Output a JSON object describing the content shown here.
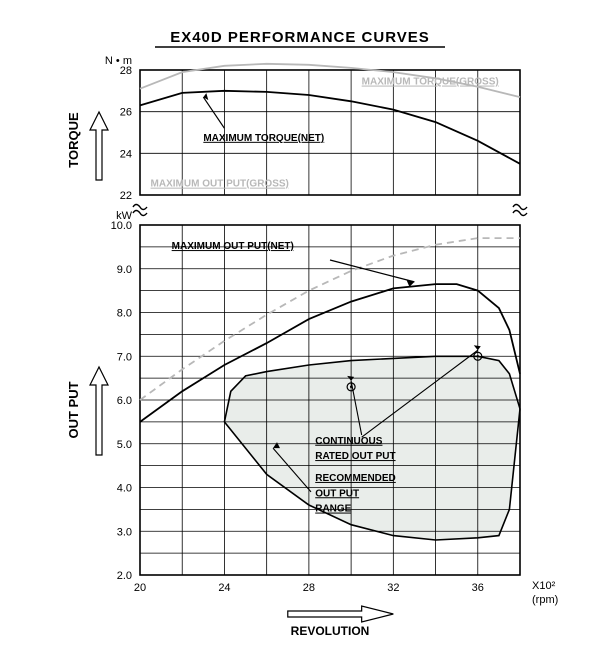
{
  "title": "EX40D  PERFORMANCE  CURVES",
  "title_fontsize": 15,
  "background_color": "#ffffff",
  "grid_color": "#000000",
  "grid_stroke": 0.8,
  "border_stroke": 1.6,
  "curve_net_color": "#000000",
  "curve_gross_color": "#b8b8b8",
  "shade_color": "#e9edea",
  "arrow_color": "#000000",
  "x_axis": {
    "label": "REVOLUTION",
    "unit_label": "X10²",
    "unit_label2": "(rpm)",
    "min": 20,
    "max": 38,
    "tick_step": 4,
    "minor_step": 2,
    "tick_labels": [
      "20",
      "24",
      "28",
      "32",
      "36"
    ]
  },
  "torque_panel": {
    "unit": "N • m",
    "y_label": "TORQUE",
    "ymin": 22,
    "ymax": 28,
    "tick_step": 2,
    "gross": {
      "label": "MAXIMUM TORQUE(GROSS)",
      "points": [
        [
          20,
          27.1
        ],
        [
          22,
          27.9
        ],
        [
          24,
          28.2
        ],
        [
          26,
          28.3
        ],
        [
          28,
          28.25
        ],
        [
          30,
          28.1
        ],
        [
          32,
          27.9
        ],
        [
          34,
          27.6
        ],
        [
          36,
          27.2
        ],
        [
          38,
          26.7
        ]
      ]
    },
    "net": {
      "label": "MAXIMUM TORQUE(NET)",
      "points": [
        [
          20,
          26.3
        ],
        [
          22,
          26.9
        ],
        [
          24,
          27.0
        ],
        [
          26,
          26.95
        ],
        [
          28,
          26.8
        ],
        [
          30,
          26.5
        ],
        [
          32,
          26.1
        ],
        [
          34,
          25.5
        ],
        [
          36,
          24.6
        ],
        [
          38,
          23.5
        ]
      ]
    },
    "gross_out_label": "MAXIMUM OUT PUT(GROSS)"
  },
  "output_panel": {
    "unit": "kW",
    "y_label": "OUT PUT",
    "ymin": 2.0,
    "ymax": 10.0,
    "tick_step": 1.0,
    "net": {
      "label": "MAXIMUM OUT PUT(NET)",
      "points": [
        [
          20,
          5.5
        ],
        [
          22,
          6.2
        ],
        [
          24,
          6.8
        ],
        [
          26,
          7.3
        ],
        [
          28,
          7.85
        ],
        [
          30,
          8.25
        ],
        [
          32,
          8.55
        ],
        [
          34,
          8.65
        ],
        [
          35,
          8.65
        ],
        [
          36,
          8.5
        ],
        [
          37,
          8.1
        ],
        [
          37.5,
          7.6
        ],
        [
          38,
          6.6
        ]
      ]
    },
    "gross": {
      "points": [
        [
          20,
          6.0
        ],
        [
          22,
          6.7
        ],
        [
          24,
          7.35
        ],
        [
          26,
          7.95
        ],
        [
          28,
          8.5
        ],
        [
          30,
          8.95
        ],
        [
          32,
          9.3
        ],
        [
          34,
          9.55
        ],
        [
          36,
          9.7
        ],
        [
          38,
          9.7
        ]
      ]
    },
    "continuous": {
      "label": "CONTINUOUS",
      "label2": "RATED OUT PUT",
      "points": [
        [
          24,
          5.5
        ],
        [
          24.3,
          6.2
        ],
        [
          25,
          6.55
        ],
        [
          26,
          6.65
        ],
        [
          28,
          6.8
        ],
        [
          30,
          6.9
        ],
        [
          32,
          6.95
        ],
        [
          34,
          7.0
        ],
        [
          36,
          7.0
        ],
        [
          37,
          6.9
        ],
        [
          37.5,
          6.6
        ],
        [
          38,
          5.8
        ]
      ]
    },
    "range_lower": {
      "points": [
        [
          24,
          5.5
        ],
        [
          26,
          4.3
        ],
        [
          28,
          3.6
        ],
        [
          30,
          3.15
        ],
        [
          32,
          2.9
        ],
        [
          34,
          2.8
        ],
        [
          36,
          2.85
        ],
        [
          37,
          2.9
        ],
        [
          37.5,
          3.5
        ],
        [
          38,
          5.8
        ]
      ]
    },
    "range_label1": "RECOMMENDED",
    "range_label2": "OUT PUT",
    "range_label3": "RANGE",
    "markers": [
      {
        "x": 30,
        "y": 6.3
      },
      {
        "x": 36,
        "y": 7.0
      }
    ]
  }
}
